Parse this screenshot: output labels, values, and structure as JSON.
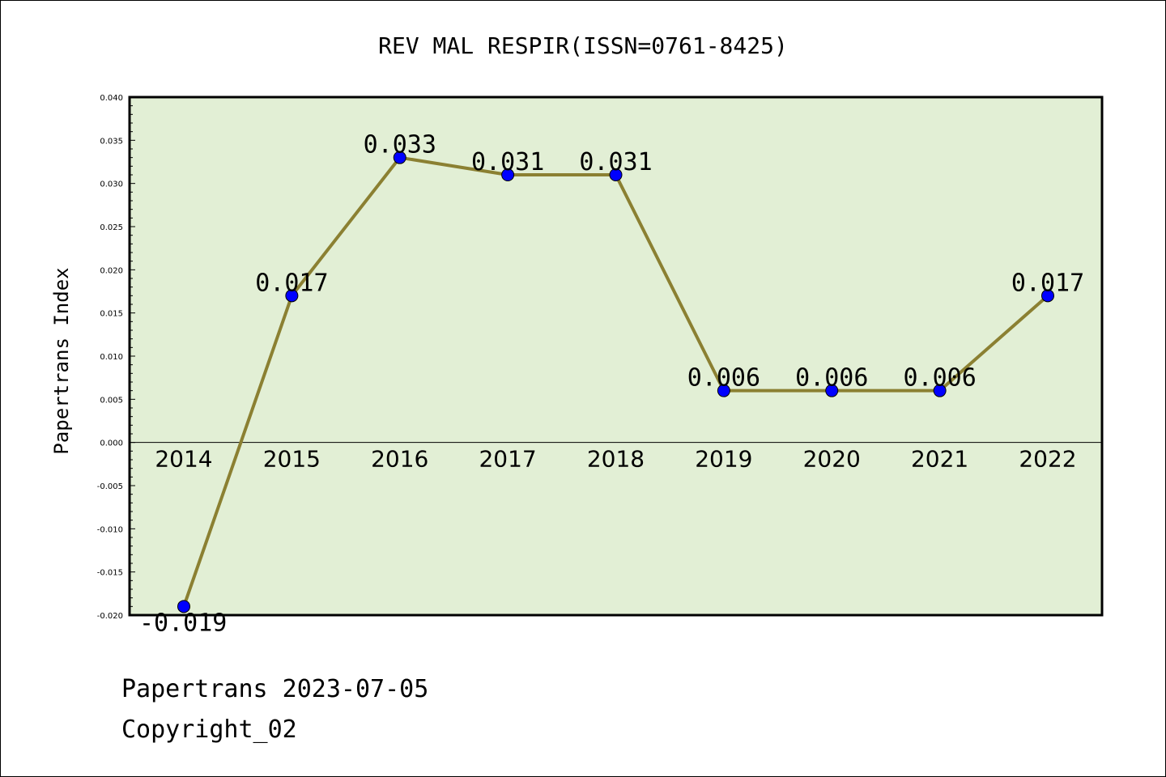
{
  "chart_data": {
    "type": "line",
    "title": "REV MAL RESPIR(ISSN=0761-8425)",
    "ylabel": "Papertrans Index",
    "xlabel": "",
    "categories": [
      "2014",
      "2015",
      "2016",
      "2017",
      "2018",
      "2019",
      "2020",
      "2021",
      "2022"
    ],
    "values": [
      -0.019,
      0.017,
      0.033,
      0.031,
      0.031,
      0.006,
      0.006,
      0.006,
      0.017
    ],
    "data_labels": [
      "-0.019",
      "0.017",
      "0.033",
      "0.031",
      "0.031",
      "0.006",
      "0.006",
      "0.006",
      "0.017"
    ],
    "ylim": [
      -0.02,
      0.04
    ],
    "yticks": [
      "-0.020",
      "-0.015",
      "-0.010",
      "-0.005",
      "0.000",
      "0.005",
      "0.010",
      "0.015",
      "0.020",
      "0.025",
      "0.030",
      "0.035",
      "0.040"
    ],
    "grid": false,
    "colors": {
      "plot_background": "#e2efd5",
      "line": "#8b8032",
      "marker": "#0000ff"
    }
  },
  "footer": {
    "line1": "Papertrans 2023-07-05",
    "line2": "Copyright_02"
  }
}
